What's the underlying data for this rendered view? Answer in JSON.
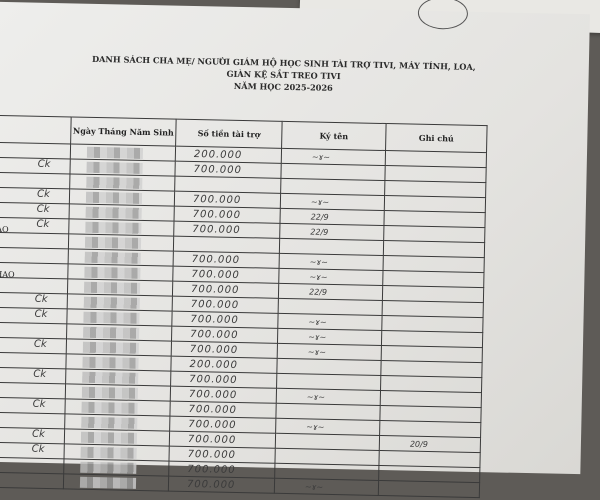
{
  "document": {
    "title_lines": [
      "DANH SÁCH CHA MẸ/ NGƯỜI GIÁM HỘ HỌC SINH TÀI TRỢ TIVI, MÁY TÍNH, LOA,",
      "GIÀN KỆ SẮT TREO TIVI",
      "NĂM HỌC 2025-2026"
    ],
    "columns": [
      "",
      "Ngày Tháng Năm Sinh",
      "Số tiền tài trợ",
      "Ký tên",
      "Ghi chú"
    ],
    "rows": [
      {
        "name": "",
        "ck": "",
        "amount": "200.000",
        "sign": "signature",
        "note": ""
      },
      {
        "name": "",
        "ck": "Ck",
        "amount": "700.000",
        "sign": "",
        "note": ""
      },
      {
        "name": "",
        "ck": "",
        "amount": "",
        "sign": "",
        "note": ""
      },
      {
        "name": "",
        "ck": "Ck",
        "amount": "700.000",
        "sign": "signature",
        "note": ""
      },
      {
        "name": "",
        "ck": "Ck",
        "amount": "700.000",
        "sign": "22/9",
        "note": ""
      },
      {
        "name": "AO",
        "ck": "Ck",
        "amount": "700.000",
        "sign": "22/9",
        "note": ""
      },
      {
        "name": "",
        "ck": "",
        "amount": "",
        "sign": "",
        "note": ""
      },
      {
        "name": "",
        "ck": "",
        "amount": "700.000",
        "sign": "signature",
        "note": ""
      },
      {
        "name": "HAO",
        "ck": "",
        "amount": "700.000",
        "sign": "signature",
        "note": ""
      },
      {
        "name": "",
        "ck": "",
        "amount": "700.000",
        "sign": "22/9",
        "note": ""
      },
      {
        "name": "",
        "ck": "Ck",
        "amount": "700.000",
        "sign": "",
        "note": ""
      },
      {
        "name": "",
        "ck": "Ck",
        "amount": "700.000",
        "sign": "signature",
        "note": ""
      },
      {
        "name": "",
        "ck": "",
        "amount": "700.000",
        "sign": "signature",
        "note": ""
      },
      {
        "name": "",
        "ck": "Ck",
        "amount": "700.000",
        "sign": "signature",
        "note": ""
      },
      {
        "name": "",
        "ck": "",
        "amount": "200.000",
        "sign": "",
        "note": ""
      },
      {
        "name": "",
        "ck": "Ck",
        "amount": "700.000",
        "sign": "",
        "note": ""
      },
      {
        "name": "",
        "ck": "",
        "amount": "700.000",
        "sign": "signature",
        "note": ""
      },
      {
        "name": "",
        "ck": "Ck",
        "amount": "700.000",
        "sign": "",
        "note": ""
      },
      {
        "name": "",
        "ck": "",
        "amount": "700.000",
        "sign": "signature",
        "note": ""
      },
      {
        "name": "",
        "ck": "Ck",
        "amount": "700.000",
        "sign": "",
        "note": "20/9"
      },
      {
        "name": "",
        "ck": "Ck",
        "amount": "700.000",
        "sign": "",
        "note": ""
      },
      {
        "name": "",
        "ck": "",
        "amount": "700.000",
        "sign": "",
        "note": ""
      },
      {
        "name": "",
        "ck": "",
        "amount": "700.000",
        "sign": "signature",
        "note": ""
      }
    ]
  }
}
